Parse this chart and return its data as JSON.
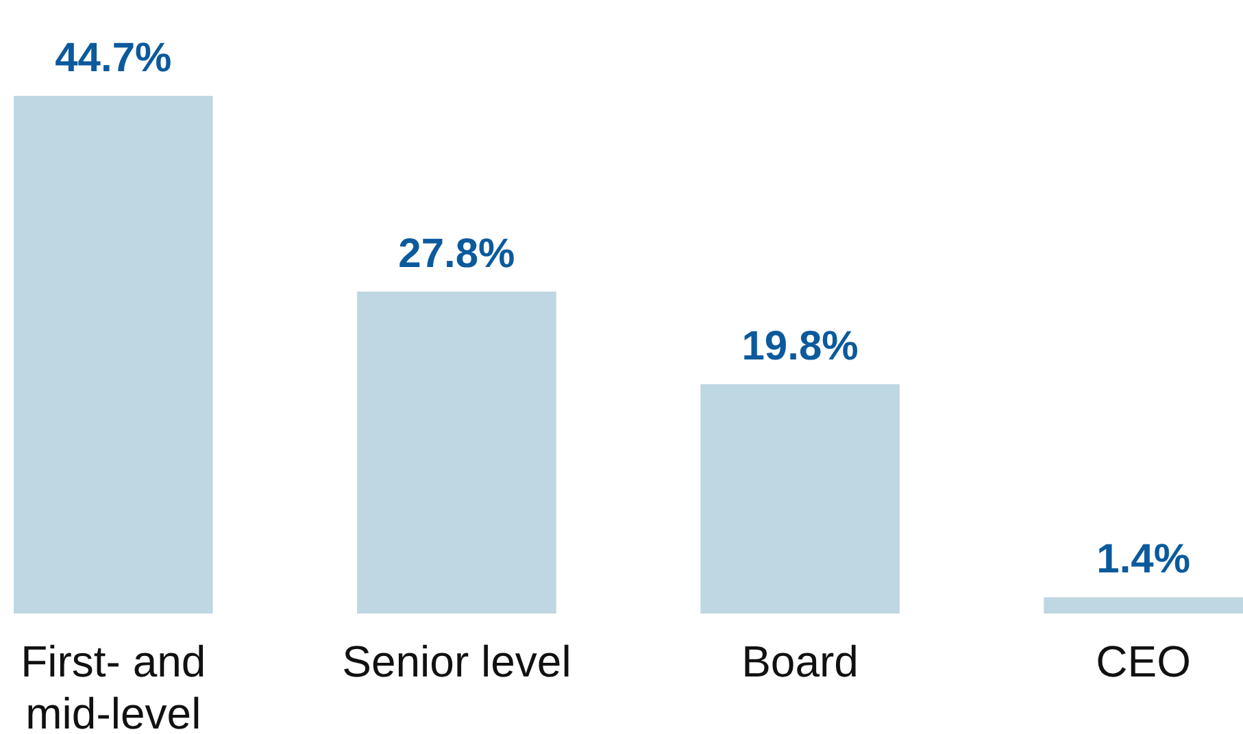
{
  "chart_data": {
    "type": "bar",
    "categories": [
      "First- and mid-level",
      "Senior level",
      "Board",
      "CEO"
    ],
    "values": [
      44.7,
      27.8,
      19.8,
      1.4
    ],
    "value_labels": [
      "44.7%",
      "27.8%",
      "19.8%",
      "1.4%"
    ],
    "color": "#bfd7e2"
  }
}
